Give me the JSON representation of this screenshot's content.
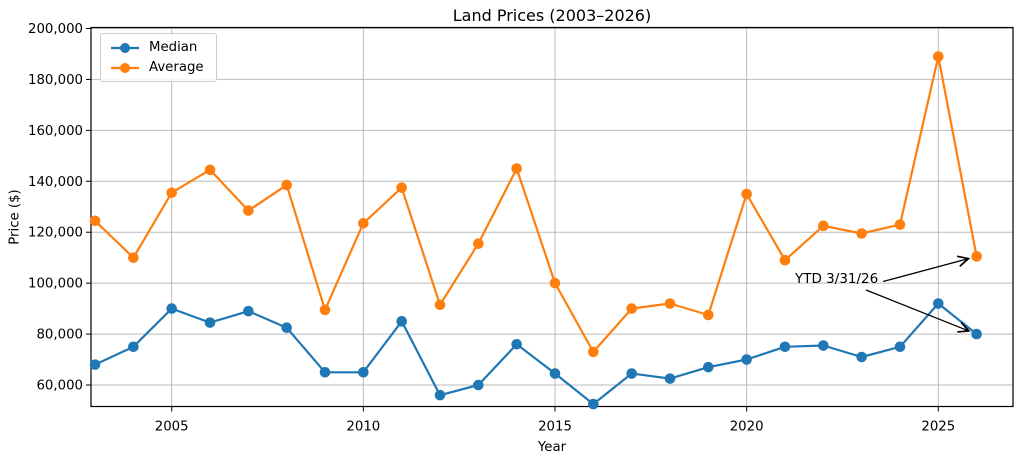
{
  "chart_data": {
    "type": "line",
    "title": "Land Prices (2003–2026)",
    "xlabel": "Year",
    "ylabel": "Price ($)",
    "x": [
      2003,
      2004,
      2005,
      2006,
      2007,
      2008,
      2009,
      2010,
      2011,
      2012,
      2013,
      2014,
      2015,
      2016,
      2017,
      2018,
      2019,
      2020,
      2021,
      2022,
      2023,
      2024,
      2025,
      2026
    ],
    "series": [
      {
        "name": "Median",
        "color": "#1f77b4",
        "values": [
          68000,
          75000,
          90000,
          84500,
          89000,
          82500,
          65000,
          65000,
          85000,
          56000,
          60000,
          76000,
          64500,
          52500,
          64500,
          62500,
          67000,
          70000,
          75000,
          75500,
          71000,
          75000,
          92000,
          80000
        ]
      },
      {
        "name": "Average",
        "color": "#ff7f0e",
        "values": [
          124500,
          110000,
          135500,
          144500,
          128500,
          138500,
          89500,
          123500,
          137500,
          91500,
          115500,
          145000,
          100000,
          73000,
          90000,
          92000,
          87500,
          135000,
          109000,
          122500,
          119500,
          123000,
          189000,
          110500
        ]
      }
    ],
    "x_tick_values": [
      2005,
      2010,
      2015,
      2020,
      2025
    ],
    "x_tick_labels": [
      "2005",
      "2010",
      "2015",
      "2020",
      "2025"
    ],
    "y_tick_values": [
      60000,
      80000,
      100000,
      120000,
      140000,
      160000,
      180000,
      200000
    ],
    "y_tick_labels": [
      "60,000",
      "80,000",
      "100,000",
      "120,000",
      "140,000",
      "160,000",
      "180,000",
      "200,000"
    ],
    "ylim": [
      51500,
      200000
    ],
    "xlim": [
      2002.9,
      2026.95
    ],
    "grid": true,
    "grid_color": "#b0b0b0",
    "legend_position": "upper-left",
    "annotation": {
      "text": "YTD 3/31/26",
      "arrow_targets": [
        {
          "series": "Average",
          "year": 2026
        },
        {
          "series": "Median",
          "year": 2026
        }
      ]
    }
  }
}
